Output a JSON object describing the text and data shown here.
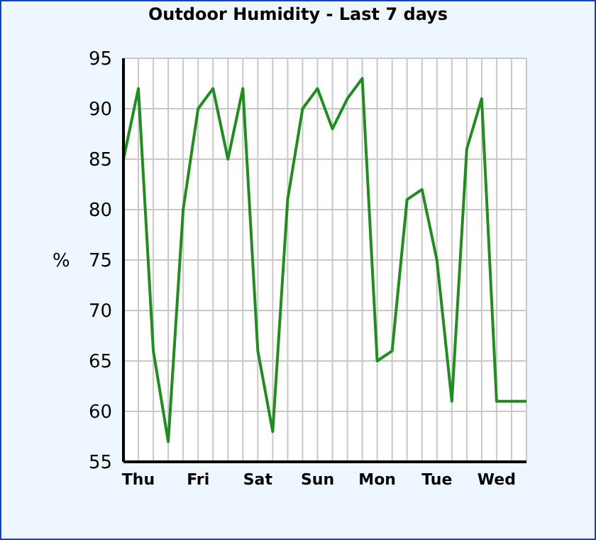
{
  "chart_data": {
    "type": "line",
    "title": "Outdoor Humidity - Last 7 days",
    "ylabel": "%",
    "categories": [
      null,
      "Thu",
      null,
      null,
      null,
      "Fri",
      null,
      null,
      null,
      "Sat",
      null,
      null,
      null,
      "Sun",
      null,
      null,
      null,
      "Mon",
      null,
      null,
      null,
      "Tue",
      null,
      null,
      null,
      "Wed",
      null,
      null
    ],
    "series": [
      {
        "color": "#228b22",
        "values": [
          85,
          92,
          66,
          57,
          80,
          90,
          92,
          85,
          92,
          66,
          58,
          81,
          90,
          92,
          88,
          91,
          93,
          65,
          66,
          81,
          82,
          75,
          61,
          86,
          91,
          61,
          61,
          61
        ]
      }
    ],
    "ylim": [
      55,
      95
    ],
    "yticks": [
      55,
      60,
      65,
      70,
      75,
      80,
      85,
      90,
      95
    ],
    "grid": true,
    "marker": "none",
    "line_style": "solid"
  }
}
